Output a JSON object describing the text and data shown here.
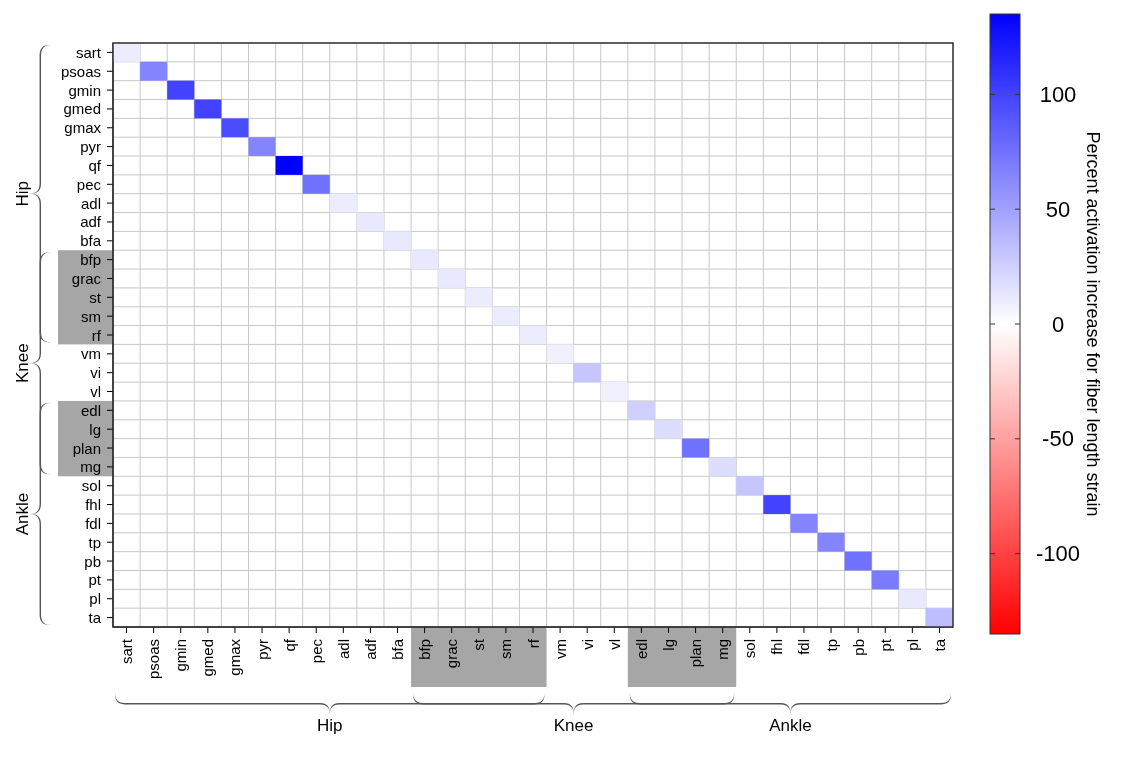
{
  "chart_data": {
    "type": "heatmap",
    "categories": [
      "sart",
      "psoas",
      "gmin",
      "gmed",
      "gmax",
      "pyr",
      "qf",
      "pec",
      "adl",
      "adf",
      "bfa",
      "bfp",
      "grac",
      "st",
      "sm",
      "rf",
      "vm",
      "vi",
      "vl",
      "edl",
      "lg",
      "plan",
      "mg",
      "sol",
      "fhl",
      "fdl",
      "tp",
      "pb",
      "pt",
      "pl",
      "ta"
    ],
    "y_categories": [
      "sart",
      "psoas",
      "gmin",
      "gmed",
      "gmax",
      "pyr",
      "qf",
      "pec",
      "adl",
      "adf",
      "bfa",
      "bfp",
      "grac",
      "st",
      "sm",
      "rf",
      "vm",
      "vi",
      "vl",
      "edl",
      "lg",
      "plan",
      "mg",
      "sol",
      "fhl",
      "fdl",
      "tp",
      "pb",
      "pt",
      "pl",
      "ta"
    ],
    "cells": [
      [
        10,
        null,
        null,
        null,
        null,
        null,
        null,
        null,
        null,
        null,
        null,
        null,
        null,
        null,
        null,
        null,
        null,
        null,
        null,
        null,
        null,
        null,
        null,
        null,
        null,
        null,
        null,
        null,
        null,
        null,
        null
      ],
      [
        null,
        65,
        null,
        null,
        null,
        null,
        null,
        null,
        null,
        null,
        null,
        null,
        null,
        null,
        null,
        null,
        null,
        null,
        null,
        null,
        null,
        null,
        null,
        null,
        null,
        null,
        null,
        null,
        null,
        null,
        null
      ],
      [
        null,
        null,
        100,
        null,
        null,
        null,
        null,
        null,
        null,
        null,
        null,
        null,
        null,
        null,
        null,
        null,
        null,
        null,
        null,
        null,
        null,
        null,
        null,
        null,
        null,
        null,
        null,
        null,
        null,
        null,
        null
      ],
      [
        null,
        null,
        null,
        100,
        null,
        null,
        null,
        null,
        null,
        null,
        null,
        null,
        null,
        null,
        null,
        null,
        null,
        null,
        null,
        null,
        null,
        null,
        null,
        null,
        null,
        null,
        null,
        null,
        null,
        null,
        null
      ],
      [
        null,
        null,
        null,
        null,
        95,
        null,
        null,
        null,
        null,
        null,
        null,
        null,
        null,
        null,
        null,
        null,
        null,
        null,
        null,
        null,
        null,
        null,
        null,
        null,
        null,
        null,
        null,
        null,
        null,
        null,
        null
      ],
      [
        null,
        null,
        null,
        null,
        null,
        65,
        null,
        null,
        null,
        null,
        null,
        null,
        null,
        null,
        null,
        null,
        null,
        null,
        null,
        null,
        null,
        null,
        null,
        null,
        null,
        null,
        null,
        null,
        null,
        null,
        null
      ],
      [
        null,
        null,
        null,
        null,
        null,
        null,
        135,
        null,
        null,
        null,
        null,
        null,
        null,
        null,
        null,
        null,
        null,
        null,
        null,
        null,
        null,
        null,
        null,
        null,
        null,
        null,
        null,
        null,
        null,
        null,
        null
      ],
      [
        null,
        null,
        null,
        null,
        null,
        null,
        null,
        75,
        null,
        null,
        null,
        null,
        null,
        null,
        null,
        null,
        null,
        null,
        null,
        null,
        null,
        null,
        null,
        null,
        null,
        null,
        null,
        null,
        null,
        null,
        null
      ],
      [
        null,
        null,
        null,
        null,
        null,
        null,
        null,
        null,
        10,
        null,
        null,
        null,
        null,
        null,
        null,
        null,
        null,
        null,
        null,
        null,
        null,
        null,
        null,
        null,
        null,
        null,
        null,
        null,
        null,
        null,
        null
      ],
      [
        null,
        null,
        null,
        null,
        null,
        null,
        null,
        null,
        null,
        12,
        null,
        null,
        null,
        null,
        null,
        null,
        null,
        null,
        null,
        null,
        null,
        null,
        null,
        null,
        null,
        null,
        null,
        null,
        null,
        null,
        null
      ],
      [
        null,
        null,
        null,
        null,
        null,
        null,
        null,
        null,
        null,
        null,
        12,
        null,
        null,
        null,
        null,
        null,
        null,
        null,
        null,
        null,
        null,
        null,
        null,
        null,
        null,
        null,
        null,
        null,
        null,
        null,
        null
      ],
      [
        null,
        null,
        null,
        null,
        null,
        null,
        null,
        null,
        null,
        null,
        null,
        12,
        null,
        null,
        null,
        null,
        null,
        null,
        null,
        null,
        null,
        null,
        null,
        null,
        null,
        null,
        null,
        null,
        null,
        null,
        null
      ],
      [
        null,
        null,
        null,
        null,
        null,
        null,
        null,
        null,
        null,
        null,
        null,
        null,
        12,
        null,
        null,
        null,
        null,
        null,
        null,
        null,
        null,
        null,
        null,
        null,
        null,
        null,
        null,
        null,
        null,
        null,
        null
      ],
      [
        null,
        null,
        null,
        null,
        null,
        null,
        null,
        null,
        null,
        null,
        null,
        null,
        null,
        10,
        null,
        null,
        null,
        null,
        null,
        null,
        null,
        null,
        null,
        null,
        null,
        null,
        null,
        null,
        null,
        null,
        null
      ],
      [
        null,
        null,
        null,
        null,
        null,
        null,
        null,
        null,
        null,
        null,
        null,
        null,
        null,
        null,
        10,
        null,
        null,
        null,
        null,
        null,
        null,
        null,
        null,
        null,
        null,
        null,
        null,
        null,
        null,
        null,
        null
      ],
      [
        null,
        null,
        null,
        null,
        null,
        null,
        null,
        null,
        null,
        null,
        null,
        null,
        null,
        null,
        null,
        10,
        null,
        null,
        null,
        null,
        null,
        null,
        null,
        null,
        null,
        null,
        null,
        null,
        null,
        null,
        null
      ],
      [
        null,
        null,
        null,
        null,
        null,
        null,
        null,
        null,
        null,
        null,
        null,
        null,
        null,
        null,
        null,
        null,
        8,
        null,
        null,
        null,
        null,
        null,
        null,
        null,
        null,
        null,
        null,
        null,
        null,
        null,
        null
      ],
      [
        null,
        null,
        null,
        null,
        null,
        null,
        null,
        null,
        null,
        null,
        null,
        null,
        null,
        null,
        null,
        null,
        null,
        30,
        null,
        null,
        null,
        null,
        null,
        null,
        null,
        null,
        null,
        null,
        null,
        null,
        null
      ],
      [
        null,
        null,
        null,
        null,
        null,
        null,
        null,
        null,
        null,
        null,
        null,
        null,
        null,
        null,
        null,
        null,
        null,
        null,
        8,
        null,
        null,
        null,
        null,
        null,
        null,
        null,
        null,
        null,
        null,
        null,
        null
      ],
      [
        null,
        null,
        null,
        null,
        null,
        null,
        null,
        null,
        null,
        null,
        null,
        null,
        null,
        null,
        null,
        null,
        null,
        null,
        null,
        25,
        null,
        null,
        null,
        null,
        null,
        null,
        null,
        null,
        null,
        null,
        null
      ],
      [
        null,
        null,
        null,
        null,
        null,
        null,
        null,
        null,
        null,
        null,
        null,
        null,
        null,
        null,
        null,
        null,
        null,
        null,
        null,
        null,
        18,
        null,
        null,
        null,
        null,
        null,
        null,
        null,
        null,
        null,
        null
      ],
      [
        null,
        null,
        null,
        null,
        null,
        null,
        null,
        null,
        null,
        null,
        null,
        null,
        null,
        null,
        null,
        null,
        null,
        null,
        null,
        null,
        null,
        75,
        null,
        null,
        null,
        null,
        null,
        null,
        null,
        null,
        null
      ],
      [
        null,
        null,
        null,
        null,
        null,
        null,
        null,
        null,
        null,
        null,
        null,
        null,
        null,
        null,
        null,
        null,
        null,
        null,
        null,
        null,
        null,
        null,
        18,
        null,
        null,
        null,
        null,
        null,
        null,
        null,
        null
      ],
      [
        null,
        null,
        null,
        null,
        null,
        null,
        null,
        null,
        null,
        null,
        null,
        null,
        null,
        null,
        null,
        null,
        null,
        null,
        null,
        null,
        null,
        null,
        null,
        30,
        null,
        null,
        null,
        null,
        null,
        null,
        null
      ],
      [
        null,
        null,
        null,
        null,
        null,
        null,
        null,
        null,
        null,
        null,
        null,
        null,
        null,
        null,
        null,
        null,
        null,
        null,
        null,
        null,
        null,
        null,
        null,
        null,
        100,
        null,
        null,
        null,
        null,
        null,
        null
      ],
      [
        null,
        null,
        null,
        null,
        null,
        null,
        null,
        null,
        null,
        null,
        null,
        null,
        null,
        null,
        null,
        null,
        null,
        null,
        null,
        null,
        null,
        null,
        null,
        null,
        null,
        65,
        null,
        null,
        null,
        null,
        null
      ],
      [
        null,
        null,
        null,
        null,
        null,
        null,
        null,
        null,
        null,
        null,
        null,
        null,
        null,
        null,
        null,
        null,
        null,
        null,
        null,
        null,
        null,
        null,
        null,
        null,
        null,
        null,
        65,
        null,
        null,
        null,
        null
      ],
      [
        null,
        null,
        null,
        null,
        null,
        null,
        null,
        null,
        null,
        null,
        null,
        null,
        null,
        null,
        null,
        null,
        null,
        null,
        null,
        null,
        null,
        null,
        null,
        null,
        null,
        null,
        null,
        75,
        null,
        null,
        null
      ],
      [
        null,
        null,
        null,
        null,
        null,
        null,
        null,
        null,
        null,
        null,
        null,
        null,
        null,
        null,
        null,
        null,
        null,
        null,
        null,
        null,
        null,
        null,
        null,
        null,
        null,
        null,
        null,
        null,
        70,
        null,
        null
      ],
      [
        null,
        null,
        null,
        null,
        null,
        null,
        null,
        null,
        null,
        null,
        null,
        null,
        null,
        null,
        null,
        null,
        null,
        null,
        null,
        null,
        null,
        null,
        null,
        null,
        null,
        null,
        null,
        null,
        null,
        12,
        null
      ],
      [
        null,
        null,
        null,
        null,
        null,
        null,
        null,
        null,
        null,
        null,
        null,
        null,
        null,
        null,
        null,
        null,
        null,
        null,
        null,
        null,
        null,
        null,
        null,
        null,
        null,
        null,
        null,
        null,
        null,
        null,
        35
      ]
    ],
    "clim": [
      -135,
      135
    ],
    "cticks": [
      -100,
      -50,
      0,
      50,
      100
    ],
    "clabel": "Percent activation increase for fiber length strain",
    "grid": true,
    "annotations": [
      "Hip",
      "Knee",
      "Ankle",
      "Hip",
      "Knee",
      "Ankle"
    ]
  }
}
